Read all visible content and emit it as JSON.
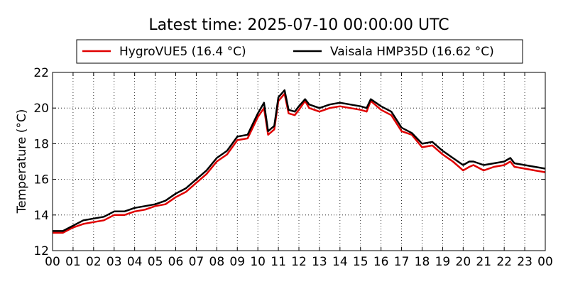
{
  "chart_data": {
    "type": "line",
    "title": "Latest time: 2025-07-10 00:00:00 UTC",
    "xlabel": "",
    "ylabel": "Temperature (°C)",
    "xlim": [
      0,
      24
    ],
    "ylim": [
      12,
      22
    ],
    "x_tick_labels": [
      "00",
      "01",
      "02",
      "03",
      "04",
      "05",
      "06",
      "07",
      "08",
      "09",
      "10",
      "11",
      "12",
      "13",
      "14",
      "15",
      "16",
      "17",
      "18",
      "19",
      "20",
      "21",
      "22",
      "23",
      "00"
    ],
    "y_ticks": [
      12,
      14,
      16,
      18,
      20,
      22
    ],
    "grid": true,
    "legend_position": "top-center",
    "x_hours": [
      0,
      0.5,
      1,
      1.5,
      2,
      2.5,
      3,
      3.5,
      4,
      4.5,
      5,
      5.5,
      6,
      6.5,
      7,
      7.5,
      8,
      8.5,
      9,
      9.5,
      10,
      10.3,
      10.5,
      10.8,
      11,
      11.3,
      11.5,
      11.8,
      12,
      12.3,
      12.5,
      13,
      13.5,
      14,
      14.5,
      15,
      15.3,
      15.5,
      16,
      16.5,
      17,
      17.5,
      18,
      18.5,
      19,
      19.5,
      20,
      20.3,
      20.5,
      21,
      21.5,
      22,
      22.3,
      22.5,
      23,
      23.5,
      24
    ],
    "series": [
      {
        "name": "HygroVUE5 (16.4 °C)",
        "color": "#e00000",
        "values": [
          13.0,
          13.0,
          13.3,
          13.5,
          13.6,
          13.7,
          14.0,
          14.0,
          14.2,
          14.3,
          14.5,
          14.6,
          15.0,
          15.3,
          15.8,
          16.3,
          17.0,
          17.4,
          18.2,
          18.3,
          19.5,
          20.0,
          18.5,
          18.8,
          20.4,
          20.8,
          19.7,
          19.6,
          19.9,
          20.4,
          20.0,
          19.8,
          20.0,
          20.1,
          20.0,
          19.9,
          19.8,
          20.4,
          19.9,
          19.6,
          18.7,
          18.5,
          17.8,
          17.9,
          17.4,
          17.0,
          16.5,
          16.7,
          16.8,
          16.5,
          16.7,
          16.8,
          17.0,
          16.7,
          16.6,
          16.5,
          16.4
        ]
      },
      {
        "name": "Vaisala HMP35D (16.62 °C)",
        "color": "#000000",
        "values": [
          13.1,
          13.1,
          13.4,
          13.7,
          13.8,
          13.9,
          14.2,
          14.2,
          14.4,
          14.5,
          14.6,
          14.8,
          15.2,
          15.5,
          16.0,
          16.5,
          17.2,
          17.6,
          18.4,
          18.5,
          19.7,
          20.3,
          18.7,
          19.0,
          20.6,
          21.0,
          19.9,
          19.8,
          20.1,
          20.5,
          20.2,
          20.0,
          20.2,
          20.3,
          20.2,
          20.1,
          20.0,
          20.5,
          20.1,
          19.8,
          18.9,
          18.6,
          18.0,
          18.1,
          17.6,
          17.2,
          16.8,
          17.0,
          17.0,
          16.8,
          16.9,
          17.0,
          17.2,
          16.9,
          16.8,
          16.7,
          16.6
        ]
      }
    ]
  }
}
